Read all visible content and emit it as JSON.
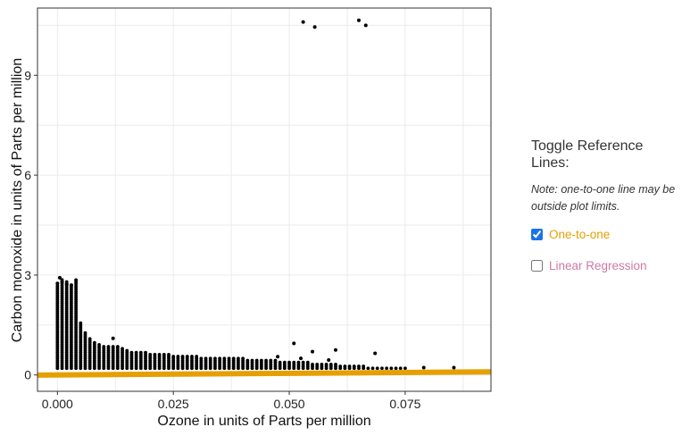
{
  "chart_data": {
    "type": "scatter",
    "xlabel": "Ozone in units of Parts per million",
    "ylabel": "Carbon monoxide in units of Parts per million",
    "xlim": [
      -0.0043,
      0.0935
    ],
    "ylim": [
      -0.49,
      11.02
    ],
    "x_ticks": [
      "0.000",
      "0.025",
      "0.050",
      "0.075"
    ],
    "y_ticks": [
      "0",
      "3",
      "6",
      "9"
    ],
    "grid": true,
    "band_step": 0.001,
    "band_tops": [
      2.7,
      2.9,
      2.8,
      2.7,
      2.8,
      1.6,
      1.3,
      1.1,
      1.0,
      0.95,
      0.9,
      0.88,
      0.85,
      0.85,
      0.8,
      0.75,
      0.72,
      0.7,
      0.7,
      0.68,
      0.66,
      0.65,
      0.64,
      0.63,
      0.62,
      0.6,
      0.6,
      0.58,
      0.58,
      0.57,
      0.56,
      0.55,
      0.55,
      0.54,
      0.53,
      0.52,
      0.52,
      0.51,
      0.5,
      0.5,
      0.5,
      0.48,
      0.48,
      0.47,
      0.46,
      0.45,
      0.45,
      0.44,
      0.43,
      0.42,
      0.42,
      0.41,
      0.4,
      0.4,
      0.38,
      0.37,
      0.36,
      0.35,
      0.34,
      0.33,
      0.32,
      0.31,
      0.3,
      0.29,
      0.28,
      0.27,
      0.26,
      0.25,
      0.25,
      0.24,
      0.24,
      0.23,
      0.22,
      0.21,
      0.2,
      0.2,
      0.19,
      0.18
    ],
    "band_bottom": 0.2,
    "outliers": [
      {
        "x": 0.053,
        "y": 10.6
      },
      {
        "x": 0.0555,
        "y": 10.45
      },
      {
        "x": 0.065,
        "y": 10.65
      },
      {
        "x": 0.0665,
        "y": 10.5
      },
      {
        "x": 0.0,
        "y": 2.75
      },
      {
        "x": 0.0005,
        "y": 2.92
      },
      {
        "x": 0.001,
        "y": 2.8
      },
      {
        "x": 0.002,
        "y": 2.72
      },
      {
        "x": 0.003,
        "y": 2.7
      },
      {
        "x": 0.004,
        "y": 2.85
      },
      {
        "x": 0.012,
        "y": 1.1
      },
      {
        "x": 0.051,
        "y": 0.95
      },
      {
        "x": 0.055,
        "y": 0.7
      },
      {
        "x": 0.06,
        "y": 0.75
      },
      {
        "x": 0.0685,
        "y": 0.65
      },
      {
        "x": 0.0475,
        "y": 0.55
      },
      {
        "x": 0.0525,
        "y": 0.5
      },
      {
        "x": 0.0585,
        "y": 0.45
      },
      {
        "x": 0.079,
        "y": 0.22
      },
      {
        "x": 0.0855,
        "y": 0.22
      }
    ],
    "reference_line": {
      "name": "One-to-one",
      "color": "#e69f00"
    }
  },
  "panel": {
    "title": "Toggle Reference Lines:",
    "note": "Note: one-to-one line may be outside plot limits.",
    "toggles": [
      {
        "label": "One-to-one",
        "checked": true,
        "color": "#e69f00"
      },
      {
        "label": "Linear Regression",
        "checked": false,
        "color": "#cc79a7"
      }
    ]
  }
}
